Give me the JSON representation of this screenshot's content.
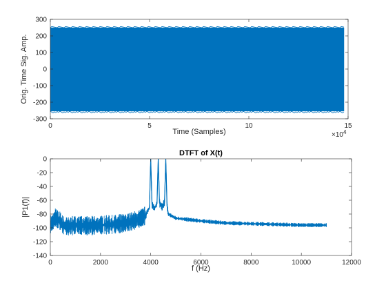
{
  "chart_data": [
    {
      "type": "line",
      "title": "",
      "xlabel": "Time (Samples)",
      "ylabel": "Orig. Time Sig. Amp.",
      "xlim": [
        0,
        150000
      ],
      "ylim": [
        -300,
        300
      ],
      "x_ticks": [
        0,
        5,
        10,
        15
      ],
      "x_exponent_label": "×10",
      "x_exponent_power": "4",
      "y_ticks": [
        -300,
        -200,
        -100,
        0,
        100,
        200,
        300
      ],
      "grid": false,
      "color": "#0072BD",
      "series": [
        {
          "x": [
            0,
            148000
          ],
          "envelope_upper": [
            250,
            250
          ],
          "envelope_lower": [
            -255,
            -255
          ]
        }
      ]
    },
    {
      "type": "line",
      "title": "DTFT of X(t)",
      "xlabel": "f (Hz)",
      "ylabel": "|P1(f)|",
      "xlim": [
        0,
        12000
      ],
      "ylim": [
        -140,
        0
      ],
      "x_ticks": [
        0,
        2000,
        4000,
        6000,
        8000,
        10000,
        12000
      ],
      "y_ticks": [
        -140,
        -120,
        -100,
        -80,
        -60,
        -40,
        -20,
        0
      ],
      "grid": false,
      "color": "#0072BD",
      "series": [
        {
          "x": [
            0,
            100,
            200,
            300,
            400,
            500,
            700,
            1000,
            1500,
            2000,
            2500,
            3000,
            3500,
            3800,
            3950,
            4000,
            4050,
            4150,
            4250,
            4300,
            4350,
            4450,
            4550,
            4600,
            4650,
            4700,
            5000,
            5500,
            6000,
            7000,
            8000,
            9000,
            10000,
            11000
          ],
          "y": [
            -95,
            -92,
            -85,
            -88,
            -90,
            -96,
            -98,
            -96,
            -97,
            -96,
            -95,
            -93,
            -88,
            -82,
            -70,
            0,
            -66,
            -72,
            -65,
            0,
            -64,
            -70,
            -63,
            0,
            -68,
            -80,
            -86,
            -88,
            -90,
            -93,
            -94,
            -95,
            -96,
            -96
          ]
        }
      ]
    }
  ]
}
